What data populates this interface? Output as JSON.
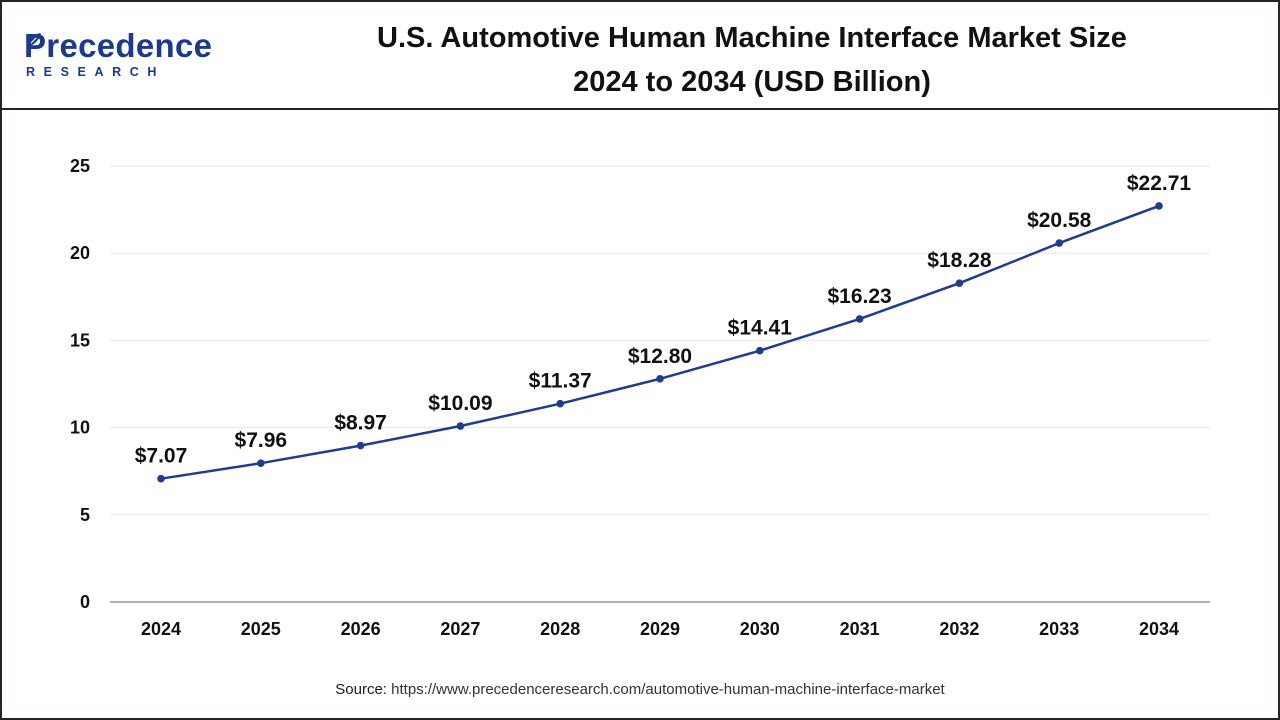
{
  "brand": {
    "logo_text": "Precedence",
    "logo_subtext": "RESEARCH",
    "color": "#1b3a8c"
  },
  "header": {
    "title_line1": "U.S. Automotive Human Machine Interface Market Size",
    "title_line2": "2024 to 2034 (USD Billion)"
  },
  "source": {
    "label": "Source:",
    "url": "https://www.precedenceresearch.com/automotive-human-machine-interface-market"
  },
  "chart_data": {
    "type": "line",
    "title": "U.S. Automotive Human Machine Interface Market Size 2024 to 2034 (USD Billion)",
    "xlabel": "",
    "ylabel": "",
    "categories": [
      "2024",
      "2025",
      "2026",
      "2027",
      "2028",
      "2029",
      "2030",
      "2031",
      "2032",
      "2033",
      "2034"
    ],
    "series": [
      {
        "name": "Market Size (USD Billion)",
        "values": [
          7.07,
          7.96,
          8.97,
          10.09,
          11.37,
          12.8,
          14.41,
          16.23,
          18.28,
          20.58,
          22.71
        ],
        "labels": [
          "$7.07",
          "$7.96",
          "$8.97",
          "$10.09",
          "$11.37",
          "$12.80",
          "$14.41",
          "$16.23",
          "$18.28",
          "$20.58",
          "$22.71"
        ],
        "color": "#1f3c8f"
      }
    ],
    "ylim": [
      0,
      25
    ],
    "yticks": [
      "0",
      "5",
      "10",
      "15",
      "20",
      "25"
    ],
    "ytick_values": [
      0,
      5,
      10,
      15,
      20,
      25
    ],
    "grid": true,
    "gridline_color": "#e6e6e6",
    "axis_color": "#9a9a9a"
  }
}
